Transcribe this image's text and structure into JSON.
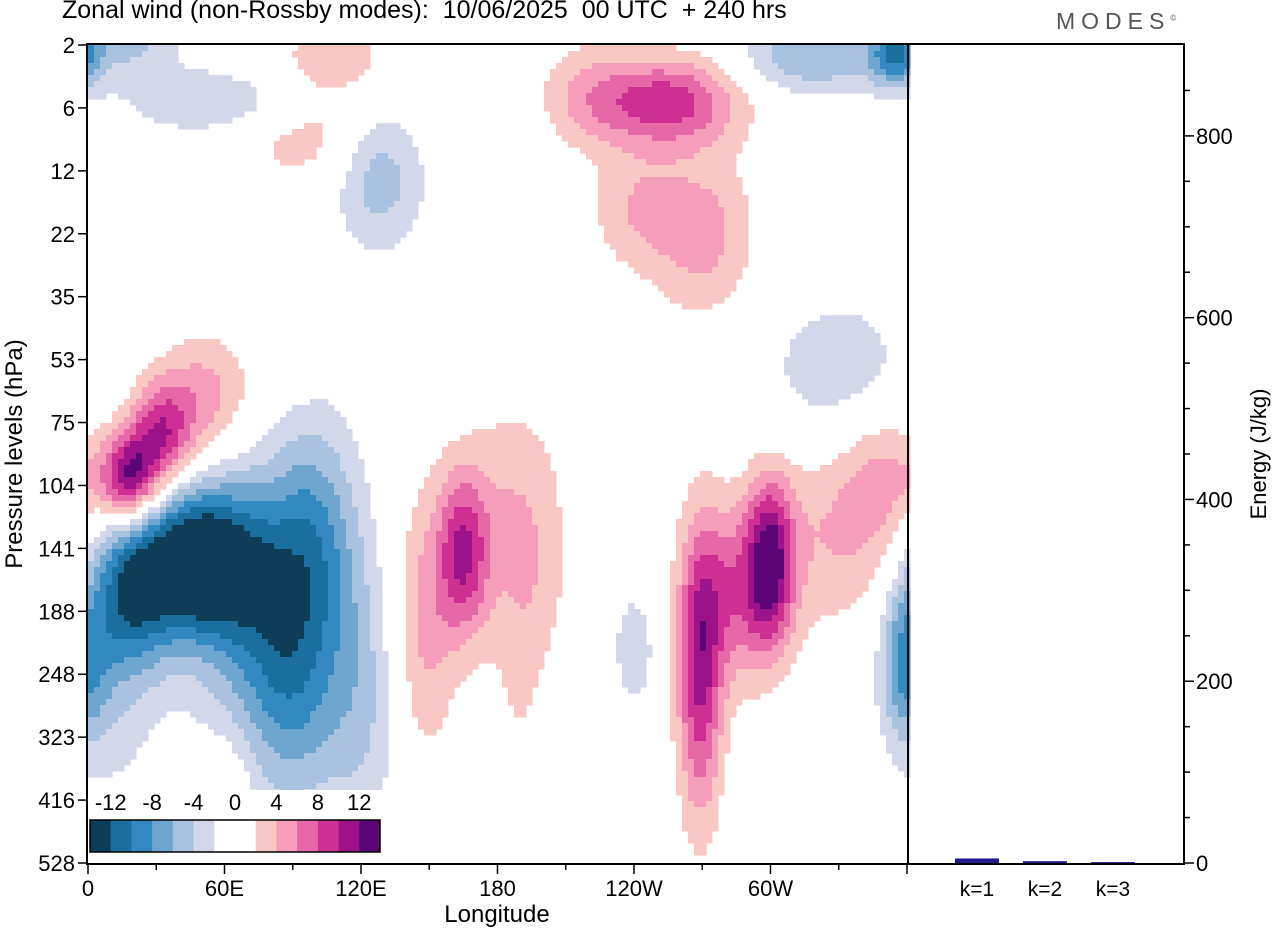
{
  "header": {
    "title": "Zonal wind (non-Rossby modes):  10/06/2025  00 UTC  + 240 hrs",
    "brand": "MODES"
  },
  "colors": {
    "palette": [
      "#0e3d57",
      "#1b6f9e",
      "#3289c0",
      "#6fa6cf",
      "#a8c2df",
      "#d3d7ea",
      "#ffffff",
      "#ffffff",
      "#f9c7c4",
      "#f59dbb",
      "#e668a6",
      "#cd2f92",
      "#9c1289",
      "#5b0577"
    ],
    "bar_fill": "#1f1a8c"
  },
  "chart_data": [
    {
      "type": "heatmap",
      "title": "Zonal wind (non-Rossby modes):  10/06/2025  00 UTC  + 240 hrs",
      "xlabel": "Longitude",
      "ylabel": "Pressure levels (hPa)",
      "x_ticks": [
        "0",
        "60E",
        "120E",
        "180",
        "120W",
        "60W"
      ],
      "x_tick_values": [
        0,
        60,
        120,
        180,
        240,
        300
      ],
      "x_range": [
        0,
        360
      ],
      "y_ticks": [
        "2",
        "6",
        "12",
        "22",
        "35",
        "53",
        "75",
        "104",
        "141",
        "188",
        "248",
        "323",
        "416",
        "528"
      ],
      "colorbar_labels": [
        "-12",
        "-8",
        "-4",
        "0",
        "4",
        "8",
        "12"
      ],
      "colorbar_levels": [
        -14,
        -12,
        -10,
        -8,
        -6,
        -4,
        -2,
        0,
        2,
        4,
        6,
        8,
        10,
        12,
        14
      ],
      "features": [
        {
          "lon": 48,
          "level_index": 8.2,
          "value": -14,
          "lon_spread": 18,
          "level_spread": 0.8
        },
        {
          "lon": 18,
          "level_index": 8.7,
          "value": -10,
          "lon_spread": 14,
          "level_spread": 0.9
        },
        {
          "lon": 75,
          "level_index": 8.9,
          "value": -8,
          "lon_spread": 22,
          "level_spread": 1.5
        },
        {
          "lon": 100,
          "level_index": 7.8,
          "value": -6,
          "lon_spread": 14,
          "level_spread": 1.4
        },
        {
          "lon": 90,
          "level_index": 10.5,
          "value": -5,
          "lon_spread": 14,
          "level_spread": 1.4
        },
        {
          "lon": 120,
          "level_index": 10.5,
          "value": -4,
          "lon_spread": 12,
          "level_spread": 1.6
        },
        {
          "lon": 10,
          "level_index": 10.4,
          "value": -3,
          "lon_spread": 14,
          "level_spread": 1.2
        },
        {
          "lon": 18,
          "level_index": 6.9,
          "value": 12,
          "lon_spread": 9,
          "level_spread": 0.5
        },
        {
          "lon": 32,
          "level_index": 6.2,
          "value": 9,
          "lon_spread": 10,
          "level_spread": 0.6
        },
        {
          "lon": 52,
          "level_index": 5.6,
          "value": 5,
          "lon_spread": 14,
          "level_spread": 0.7
        },
        {
          "lon": 90,
          "level_index": 4.6,
          "value": 2,
          "lon_spread": 10,
          "level_spread": 0.6
        },
        {
          "lon": 165,
          "level_index": 8.1,
          "value": 9,
          "lon_spread": 8,
          "level_spread": 0.9
        },
        {
          "lon": 148,
          "level_index": 9.2,
          "value": 4.5,
          "lon_spread": 10,
          "level_spread": 1.5
        },
        {
          "lon": 185,
          "level_index": 7.4,
          "value": 3,
          "lon_spread": 16,
          "level_spread": 1.3
        },
        {
          "lon": 195,
          "level_index": 9.5,
          "value": 3,
          "lon_spread": 12,
          "level_spread": 1.8
        },
        {
          "lon": 240,
          "level_index": 9.6,
          "value": -4,
          "lon_spread": 6,
          "level_spread": 0.6
        },
        {
          "lon": 269,
          "level_index": 10,
          "value": 10,
          "lon_spread": 7,
          "level_spread": 1.6
        },
        {
          "lon": 300,
          "level_index": 8.2,
          "value": 10,
          "lon_spread": 7,
          "level_spread": 0.9
        },
        {
          "lon": 286,
          "level_index": 8.7,
          "value": 7,
          "lon_spread": 14,
          "level_spread": 1.0
        },
        {
          "lon": 330,
          "level_index": 7.7,
          "value": 4,
          "lon_spread": 22,
          "level_spread": 1.1
        },
        {
          "lon": 350,
          "level_index": 6.8,
          "value": 3.5,
          "lon_spread": 12,
          "level_spread": 0.8
        },
        {
          "lon": 358,
          "level_index": 9.9,
          "value": -6,
          "lon_spread": 7,
          "level_spread": 0.8
        },
        {
          "lon": 330,
          "level_index": 5.2,
          "value": -3.5,
          "lon_spread": 24,
          "level_spread": 0.9
        },
        {
          "lon": 128,
          "level_index": 2,
          "value": -5.5,
          "lon_spread": 14,
          "level_spread": 0.9
        },
        {
          "lon": 60,
          "level_index": 0.9,
          "value": -4.5,
          "lon_spread": 30,
          "level_spread": 0.4
        },
        {
          "lon": 20,
          "level_index": 0,
          "value": -4,
          "lon_spread": 14,
          "level_spread": 0.4
        },
        {
          "lon": 110,
          "level_index": 0.4,
          "value": 3.5,
          "lon_spread": 25,
          "level_spread": 0.6
        },
        {
          "lon": 95,
          "level_index": 1.5,
          "value": 3,
          "lon_spread": 25,
          "level_spread": 0.5
        },
        {
          "lon": 255,
          "level_index": 0.9,
          "value": 9,
          "lon_spread": 22,
          "level_spread": 0.5
        },
        {
          "lon": 220,
          "level_index": 0.8,
          "value": 3.5,
          "lon_spread": 15,
          "level_spread": 0.6
        },
        {
          "lon": 270,
          "level_index": 3,
          "value": 5,
          "lon_spread": 16,
          "level_spread": 0.9
        },
        {
          "lon": 240,
          "level_index": 2.6,
          "value": 3.5,
          "lon_spread": 14,
          "level_spread": 0.7
        },
        {
          "lon": 318,
          "level_index": 0.2,
          "value": -6,
          "lon_spread": 22,
          "level_spread": 0.4
        },
        {
          "lon": 355,
          "level_index": 0.1,
          "value": -9,
          "lon_spread": 8,
          "level_spread": 0.4
        },
        {
          "lon": 205,
          "level_index": 11.5,
          "value": -2.5,
          "lon_spread": 8,
          "level_spread": 1.4
        },
        {
          "lon": 60,
          "level_index": 12.3,
          "value": 3,
          "lon_spread": 8,
          "level_spread": 0.8
        }
      ]
    },
    {
      "type": "bar",
      "ylabel": "Energy (J/kg)",
      "categories": [
        "k=1",
        "k=2",
        "k=3"
      ],
      "values": [
        5,
        2,
        1
      ],
      "ylim": [
        0,
        900
      ],
      "y_ticks": [
        0,
        200,
        400,
        600,
        800
      ]
    }
  ]
}
